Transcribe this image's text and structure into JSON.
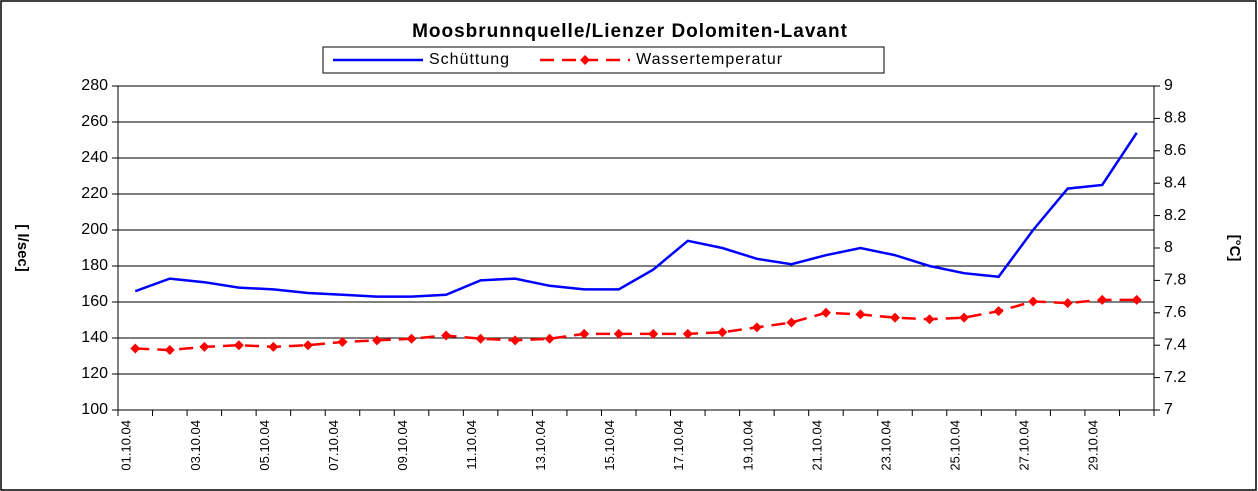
{
  "chart_data": {
    "type": "line",
    "title": "Moosbrunnquelle/Lienzer Dolomiten-Lavant",
    "y_label": "[ l/sec]",
    "y2_label": "[°C]",
    "categories": [
      "01.10.04",
      null,
      "03.10.04",
      null,
      "05.10.04",
      null,
      "07.10.04",
      null,
      "09.10.04",
      null,
      "11.10.04",
      null,
      "13.10.04",
      null,
      "15.10.04",
      null,
      "17.10.04",
      null,
      "19.10.04",
      null,
      "21.10.04",
      null,
      "23.10.04",
      null,
      "25.10.04",
      null,
      "27.10.04",
      null,
      "29.10.04",
      null
    ],
    "series": [
      {
        "name": "Schüttung",
        "color": "#0000ff",
        "values": [
          166,
          173,
          171,
          168,
          167,
          165,
          164,
          163,
          163,
          164,
          172,
          173,
          169,
          167,
          167,
          178,
          194,
          190,
          184,
          181,
          186,
          190,
          186,
          180,
          176,
          174,
          200,
          223,
          225,
          254
        ]
      },
      {
        "name": "Wassertemperatur",
        "color": "#ff0000",
        "axis": "y2",
        "dashed": true,
        "marker": "diamond",
        "values": [
          7.38,
          7.37,
          7.39,
          7.4,
          7.39,
          7.4,
          7.42,
          7.43,
          7.44,
          7.46,
          7.44,
          7.43,
          7.44,
          7.47,
          7.47,
          7.47,
          7.47,
          7.48,
          7.51,
          7.54,
          7.6,
          7.59,
          7.57,
          7.56,
          7.57,
          7.61,
          7.67,
          7.66,
          7.68,
          7.68
        ]
      }
    ],
    "ylim": [
      100,
      280
    ],
    "yticks": [
      100,
      120,
      140,
      160,
      180,
      200,
      220,
      240,
      260,
      280
    ],
    "y2lim": [
      7,
      9
    ],
    "y2ticks": [
      7,
      7.2,
      7.4,
      7.6,
      7.8,
      8,
      8.2,
      8.4,
      8.6,
      8.8,
      9
    ],
    "grid": true,
    "legend": "top"
  }
}
